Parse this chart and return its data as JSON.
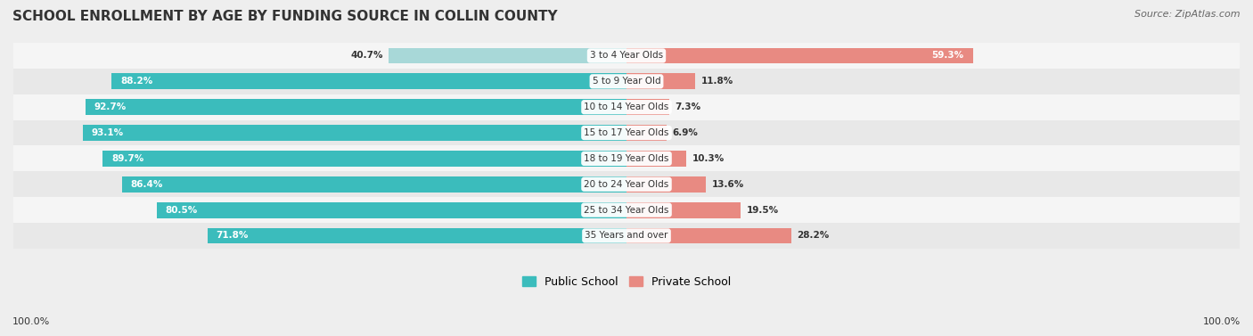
{
  "title": "SCHOOL ENROLLMENT BY AGE BY FUNDING SOURCE IN COLLIN COUNTY",
  "source": "Source: ZipAtlas.com",
  "categories": [
    "3 to 4 Year Olds",
    "5 to 9 Year Old",
    "10 to 14 Year Olds",
    "15 to 17 Year Olds",
    "18 to 19 Year Olds",
    "20 to 24 Year Olds",
    "25 to 34 Year Olds",
    "35 Years and over"
  ],
  "public_values": [
    40.7,
    88.2,
    92.7,
    93.1,
    89.7,
    86.4,
    80.5,
    71.8
  ],
  "private_values": [
    59.3,
    11.8,
    7.3,
    6.9,
    10.3,
    13.6,
    19.5,
    28.2
  ],
  "public_color": "#3BBCBC",
  "private_color": "#E88A82",
  "public_color_light": "#A8D8D8",
  "background_color": "#EEEEEE",
  "row_color_even": "#F5F5F5",
  "row_color_odd": "#E8E8E8",
  "legend_public": "Public School",
  "legend_private": "Private School",
  "left_label": "100.0%",
  "right_label": "100.0%"
}
